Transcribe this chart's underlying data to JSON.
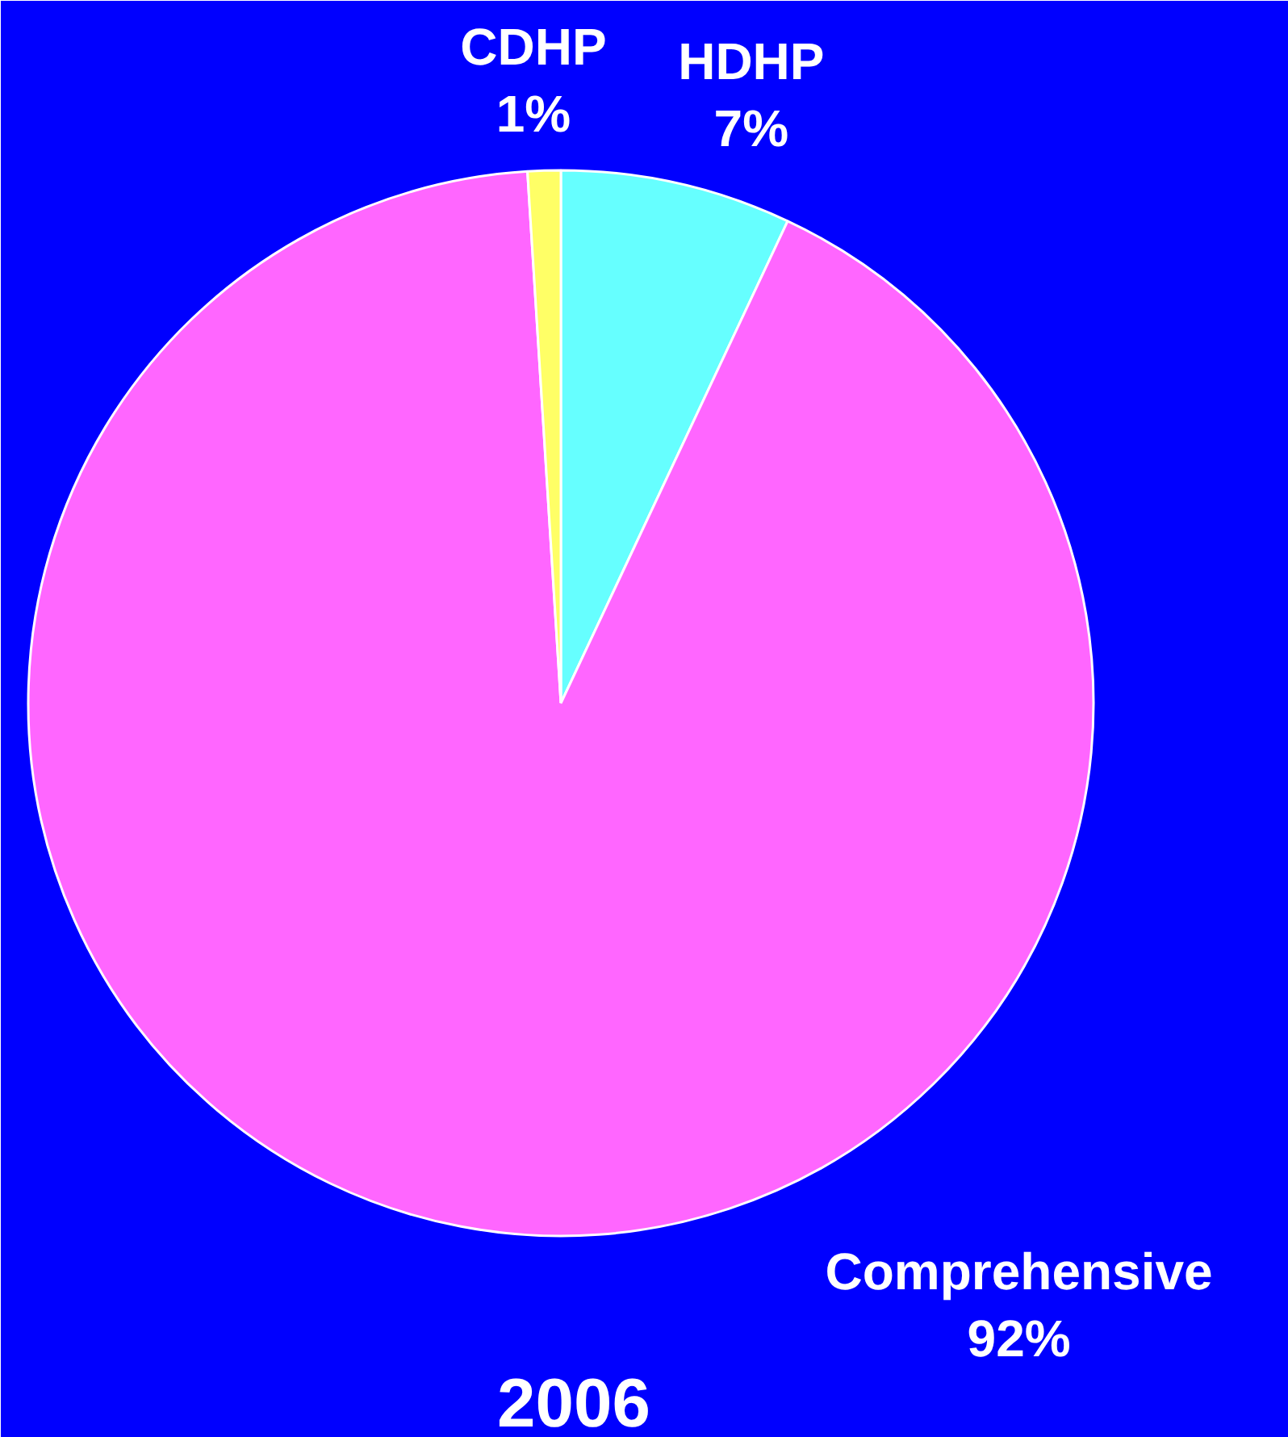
{
  "chart_data": {
    "type": "pie",
    "title": "2006",
    "categories": [
      "HDHP",
      "Comprehensive",
      "CDHP"
    ],
    "values": [
      7,
      92,
      1
    ],
    "colors": [
      "#66ffff",
      "#ff66ff",
      "#ffff66"
    ],
    "value_labels": [
      "7%",
      "92%",
      "1%"
    ]
  }
}
